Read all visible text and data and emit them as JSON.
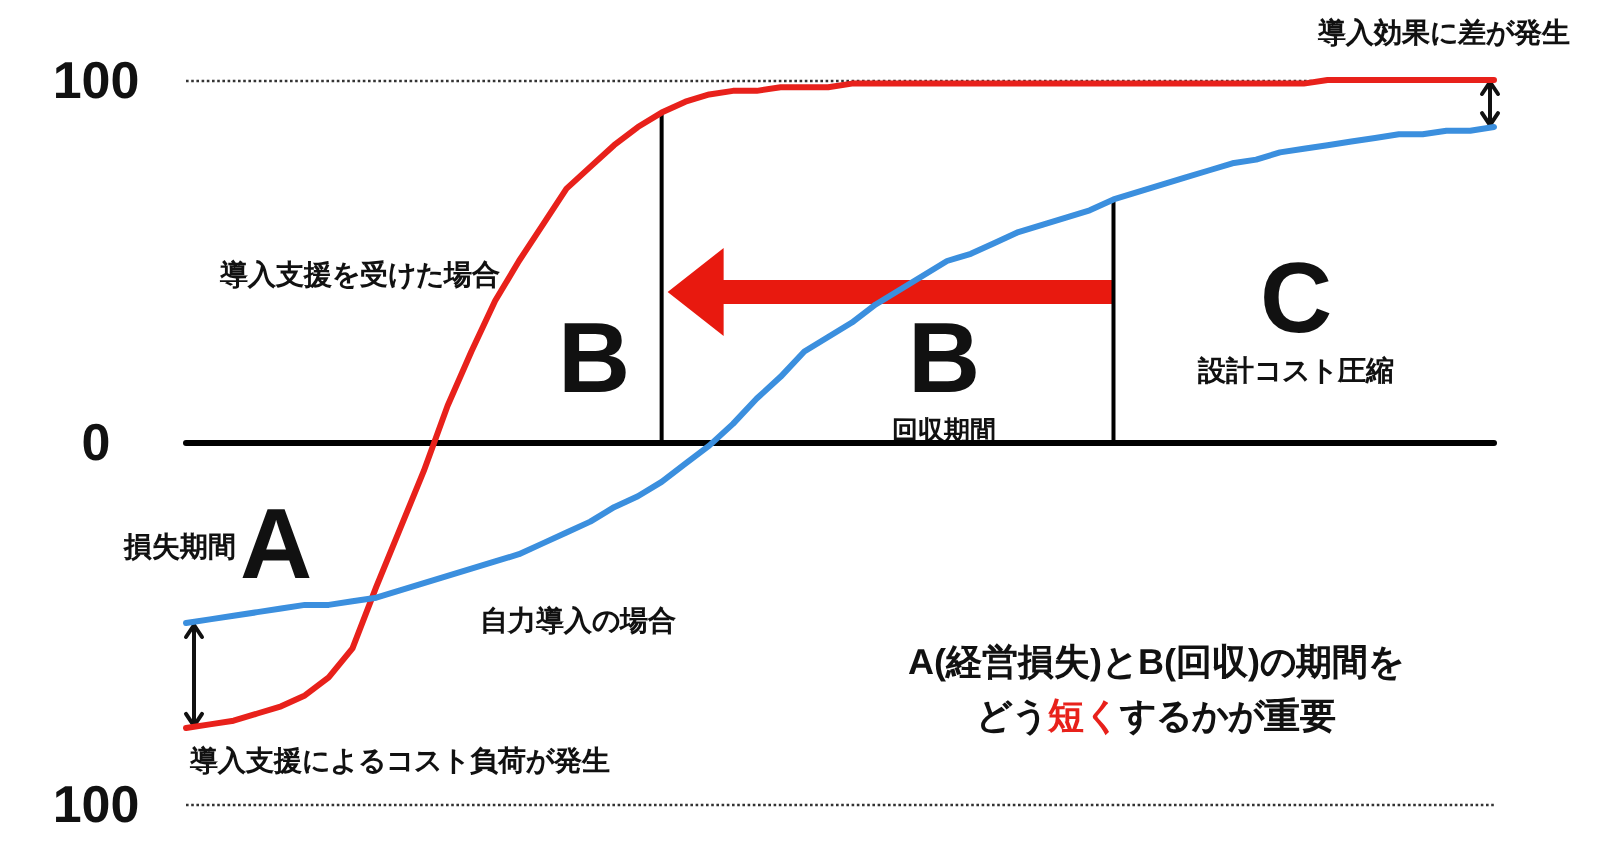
{
  "chart_data": {
    "type": "line",
    "categories": [
      null,
      null,
      null,
      null,
      null,
      null,
      null,
      null,
      null,
      null,
      null,
      null,
      null,
      null,
      null,
      null,
      null,
      null,
      null,
      null,
      null,
      null,
      null,
      null,
      null,
      null,
      null,
      null,
      null,
      null,
      null,
      null,
      null,
      null,
      null,
      null,
      null,
      null,
      null,
      null,
      null,
      null,
      null,
      null,
      null,
      null,
      null,
      null,
      null,
      null,
      null,
      null,
      null,
      null,
      null,
      null
    ],
    "series": [
      {
        "name": "導入支援を受けた場合",
        "color": "#e8211b",
        "values": [
          -79,
          -78,
          -77,
          -75,
          -73,
          -70,
          -65,
          -57,
          -40,
          -24,
          -8,
          10,
          25,
          39,
          50,
          60,
          70,
          76,
          82,
          87,
          91,
          94,
          96,
          97,
          97,
          98,
          98,
          98,
          99,
          99,
          99,
          99,
          99,
          99,
          99,
          99,
          99,
          99,
          99,
          99,
          99,
          99,
          99,
          99,
          99,
          99,
          99,
          99,
          100,
          100,
          100,
          100,
          100,
          100,
          100,
          100
        ]
      },
      {
        "name": "自力導入の場合",
        "color": "#3b8fde",
        "values": [
          -50,
          -49,
          -48,
          -47,
          -46,
          -45,
          -45,
          -44,
          -43,
          -41,
          -39,
          -37,
          -35,
          -33,
          -31,
          -28,
          -25,
          -22,
          -18,
          -15,
          -11,
          -6,
          -1,
          5,
          12,
          18,
          25,
          29,
          33,
          38,
          42,
          46,
          50,
          52,
          55,
          58,
          60,
          62,
          64,
          67,
          69,
          71,
          73,
          75,
          77,
          78,
          80,
          81,
          82,
          83,
          84,
          85,
          85,
          86,
          86,
          87
        ]
      },
      {
        "type": "bar",
        "color": "#000000",
        "values": [
          null,
          null,
          null,
          null,
          null,
          null,
          null,
          null,
          null,
          null,
          null,
          null,
          null,
          null,
          null,
          null,
          null,
          null,
          null,
          null,
          91,
          null,
          null,
          null,
          null,
          null,
          null,
          null,
          null,
          null,
          null,
          null,
          null,
          null,
          null,
          null,
          null,
          null,
          null,
          67,
          null,
          null,
          null,
          null,
          null,
          null,
          null,
          null,
          null,
          null,
          null,
          null,
          null,
          null,
          null,
          null
        ]
      }
    ],
    "ylim": [
      -100,
      100
    ],
    "yticks": [
      {
        "value": -100,
        "label": "100"
      },
      0,
      100
    ],
    "grid": "y",
    "tick_labels": "y",
    "marker": "none",
    "line_style": "solid",
    "annotations": [
      "損失期間",
      "A",
      "B",
      "B",
      "回収期間",
      "C",
      "設計コスト圧縮",
      "導入支援によるコスト負荷が発生",
      "導入効果に差が発生",
      "A(経営損失)とB(回収)の期間を",
      "どう",
      "短く",
      "するかが重要"
    ]
  }
}
